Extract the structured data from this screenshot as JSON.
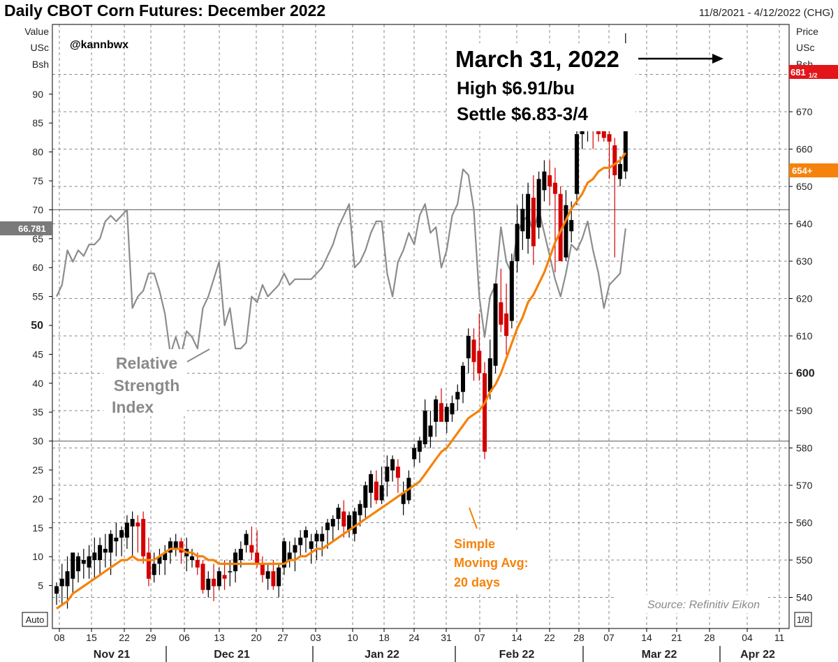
{
  "header": {
    "title": "Daily CBOT Corn Futures: December 2022",
    "date_range": "11/8/2021 - 4/12/2022 (CHG)"
  },
  "left_axis": {
    "label_lines": [
      "Value",
      "USc",
      "Bsh"
    ],
    "auto_label": "Auto",
    "current_value": "66.781"
  },
  "right_axis": {
    "label_lines": [
      "Price",
      "USc",
      "Bsh"
    ],
    "last_price_label": "681",
    "last_price_fraction": "1/2",
    "ma_value_label": "654+",
    "corner_label": "1/8"
  },
  "annotations": {
    "handle": "@kannbwx",
    "callout_line1": "March 31, 2022",
    "callout_line2": "High $6.91/bu",
    "callout_line3": "Settle $6.83-3/4",
    "rsi_label": [
      "Relative",
      "Strength",
      "Index"
    ],
    "ma_label": [
      "Simple",
      "Moving Avg:",
      "20 days"
    ],
    "source": "Source: Refinitiv Eikon"
  },
  "colors": {
    "up_candle": "#000000",
    "down_candle": "#d40000",
    "moving_average": "#f5820a",
    "rsi": "#8c8c8c",
    "grid": "#8a8a8a",
    "last_price_tag": "#e3151a",
    "ma_tag": "#f5820a",
    "rsi_tag": "#7a7a7a",
    "annotation_gray": "#8a8a8a",
    "annotation_orange": "#f5820a"
  },
  "chart_data": {
    "type": "candlestick",
    "title": "Daily CBOT Corn Futures: December 2022",
    "price_axis": {
      "label": "Price USc Bsh",
      "ylim": [
        534,
        696
      ],
      "ticks": [
        540,
        550,
        560,
        570,
        580,
        590,
        600,
        610,
        620,
        630,
        640,
        650,
        660,
        670,
        680
      ]
    },
    "rsi_axis": {
      "label": "Value USc Bsh",
      "ylim": [
        0,
        96
      ],
      "ticks": [
        5,
        10,
        15,
        20,
        25,
        30,
        35,
        40,
        45,
        50,
        55,
        60,
        65,
        70,
        75,
        80,
        85,
        90
      ],
      "reference_lines": [
        30,
        70
      ]
    },
    "x_tick_labels": [
      "08",
      "15",
      "22",
      "29",
      "06",
      "13",
      "20",
      "27",
      "03",
      "10",
      "18",
      "24",
      "31",
      "07",
      "14",
      "22",
      "28",
      "07",
      "14",
      "21",
      "28",
      "04",
      "11"
    ],
    "month_labels": [
      "Nov 21",
      "Dec 21",
      "Jan 22",
      "Feb 22",
      "Mar 22",
      "Apr 22"
    ],
    "ohlc_columns": [
      "open",
      "high",
      "low",
      "close"
    ],
    "ohlc": [
      [
        541,
        544,
        538,
        543
      ],
      [
        543,
        549,
        538,
        545
      ],
      [
        543,
        551,
        537,
        547
      ],
      [
        545,
        551,
        541,
        552
      ],
      [
        547,
        552,
        544,
        551
      ],
      [
        549,
        553,
        545,
        550
      ],
      [
        548,
        554,
        545,
        551
      ],
      [
        550,
        556,
        545,
        552
      ],
      [
        550,
        556,
        546,
        554
      ],
      [
        552,
        557,
        548,
        553
      ],
      [
        552,
        558,
        546,
        557
      ],
      [
        555,
        560,
        551,
        556
      ],
      [
        556,
        559,
        551,
        558
      ],
      [
        556,
        562,
        553,
        560
      ],
      [
        559,
        563,
        551,
        561
      ],
      [
        560,
        562,
        552,
        559
      ],
      [
        561,
        563,
        549,
        551
      ],
      [
        552,
        556,
        543,
        545
      ],
      [
        546,
        552,
        544,
        549
      ],
      [
        549,
        553,
        546,
        551
      ],
      [
        550,
        554,
        546,
        552
      ],
      [
        552,
        556,
        549,
        555
      ],
      [
        553,
        557,
        551,
        555
      ],
      [
        555,
        556,
        549,
        552
      ],
      [
        551,
        556,
        547,
        553
      ],
      [
        550,
        553,
        548,
        551
      ],
      [
        550,
        552,
        546,
        548
      ],
      [
        549,
        550,
        541,
        542
      ],
      [
        542,
        547,
        540,
        545
      ],
      [
        545,
        549,
        539,
        543
      ],
      [
        543,
        548,
        542,
        547
      ],
      [
        546,
        550,
        542,
        545
      ],
      [
        547,
        550,
        543,
        547
      ],
      [
        547,
        553,
        544,
        552
      ],
      [
        550,
        555,
        548,
        553
      ],
      [
        554,
        558,
        552,
        557
      ],
      [
        554,
        559,
        550,
        552
      ],
      [
        552,
        558,
        548,
        549
      ],
      [
        549,
        551,
        544,
        546
      ],
      [
        545,
        549,
        542,
        547
      ],
      [
        547,
        550,
        542,
        543
      ],
      [
        543,
        549,
        540,
        548
      ],
      [
        548,
        556,
        546,
        555
      ],
      [
        550,
        555,
        548,
        552
      ],
      [
        552,
        556,
        547,
        554
      ],
      [
        554,
        558,
        551,
        556
      ],
      [
        556,
        559,
        552,
        558
      ],
      [
        553,
        557,
        549,
        555
      ],
      [
        555,
        558,
        550,
        557
      ],
      [
        555,
        559,
        551,
        557
      ],
      [
        558,
        561,
        553,
        560
      ],
      [
        559,
        562,
        555,
        561
      ],
      [
        561,
        565,
        558,
        564
      ],
      [
        563,
        566,
        556,
        559
      ],
      [
        558,
        563,
        556,
        562
      ],
      [
        557,
        564,
        555,
        563
      ],
      [
        562,
        566,
        559,
        565
      ],
      [
        564,
        571,
        561,
        570
      ],
      [
        568,
        574,
        564,
        573
      ],
      [
        571,
        574,
        565,
        566
      ],
      [
        566,
        575,
        565,
        570
      ],
      [
        571,
        578,
        567,
        575
      ],
      [
        574,
        578,
        571,
        577
      ],
      [
        575,
        577,
        568,
        572
      ],
      [
        565,
        571,
        562,
        568
      ],
      [
        566,
        574,
        565,
        572
      ],
      [
        577,
        581,
        575,
        580
      ],
      [
        579,
        583,
        576,
        582
      ],
      [
        581,
        593,
        580,
        590
      ],
      [
        583,
        590,
        580,
        586
      ],
      [
        587,
        594,
        583,
        593
      ],
      [
        592,
        596,
        587,
        587
      ],
      [
        587,
        592,
        584,
        591
      ],
      [
        589,
        594,
        587,
        592
      ],
      [
        593,
        597,
        590,
        595
      ],
      [
        595,
        603,
        592,
        602
      ],
      [
        604,
        612,
        600,
        610
      ],
      [
        609,
        612,
        598,
        603
      ],
      [
        606,
        616,
        598,
        600
      ],
      [
        600,
        603,
        577,
        579
      ],
      [
        595,
        609,
        593,
        604
      ],
      [
        602,
        624,
        600,
        624
      ],
      [
        619,
        628,
        611,
        613
      ],
      [
        616,
        624,
        605,
        610
      ],
      [
        614,
        632,
        612,
        630
      ],
      [
        630,
        645,
        627,
        640
      ],
      [
        638,
        648,
        633,
        644
      ],
      [
        636,
        651,
        632,
        648
      ],
      [
        647,
        653,
        629,
        634
      ],
      [
        639,
        654,
        636,
        652
      ],
      [
        649,
        657,
        646,
        654
      ],
      [
        653,
        657,
        645,
        650
      ],
      [
        651,
        655,
        627,
        648
      ],
      [
        648,
        650,
        630,
        630
      ],
      [
        631,
        649,
        630,
        645
      ],
      [
        638,
        646,
        635,
        641
      ],
      [
        648,
        665,
        645,
        664
      ],
      [
        664,
        672,
        660,
        672
      ],
      [
        668,
        675,
        662,
        671
      ],
      [
        670,
        674,
        660,
        667
      ],
      [
        668,
        678,
        662,
        664
      ],
      [
        665,
        673,
        662,
        663
      ],
      [
        664,
        667,
        652,
        662
      ],
      [
        661,
        663,
        631,
        653
      ],
      [
        652,
        658,
        650,
        656
      ],
      [
        654,
        691,
        652,
        683.75
      ]
    ],
    "sma_20": [
      537,
      538,
      539,
      541,
      542,
      543,
      544,
      545,
      546,
      547,
      548,
      549,
      550,
      550,
      551,
      550,
      550,
      550,
      550,
      551,
      552,
      553,
      553,
      553,
      552,
      552,
      551,
      551,
      550,
      550,
      549,
      549,
      549,
      549,
      549,
      549,
      549,
      549,
      549,
      549,
      549,
      549,
      549,
      550,
      550,
      551,
      551,
      552,
      553,
      553,
      554,
      555,
      556,
      557,
      558,
      559,
      560,
      561,
      562,
      563,
      564,
      565,
      566,
      567,
      568,
      569,
      570,
      571,
      573,
      575,
      577,
      579,
      580,
      582,
      584,
      586,
      588,
      589,
      590,
      592,
      595,
      597,
      600,
      604,
      608,
      612,
      615,
      619,
      621,
      624,
      627,
      631,
      635,
      638,
      641,
      644,
      646,
      648,
      651,
      652,
      654,
      655,
      655,
      656,
      657,
      659
    ],
    "rsi_14": [
      55,
      57,
      63,
      61,
      63,
      62,
      64,
      64,
      65,
      68,
      69,
      68,
      69,
      70,
      53,
      55,
      56,
      59,
      59,
      56,
      52,
      45,
      48,
      45,
      49,
      48,
      46,
      53,
      55,
      58,
      61,
      50,
      53,
      46,
      46,
      47,
      55,
      54,
      57,
      55,
      56,
      57,
      59,
      57,
      58,
      58,
      58,
      58,
      59,
      60,
      62,
      64,
      67,
      69,
      71,
      60,
      61,
      63,
      66,
      68,
      68,
      59,
      55,
      61,
      63,
      66,
      64,
      69,
      71,
      66,
      67,
      60,
      63,
      69,
      71,
      77,
      76,
      70,
      55,
      48,
      55,
      57,
      67,
      61,
      59,
      66,
      68,
      69,
      66,
      70,
      66,
      62,
      58,
      55,
      59,
      64,
      63,
      65,
      68,
      63,
      59,
      53,
      57,
      58,
      59,
      66.781
    ]
  }
}
